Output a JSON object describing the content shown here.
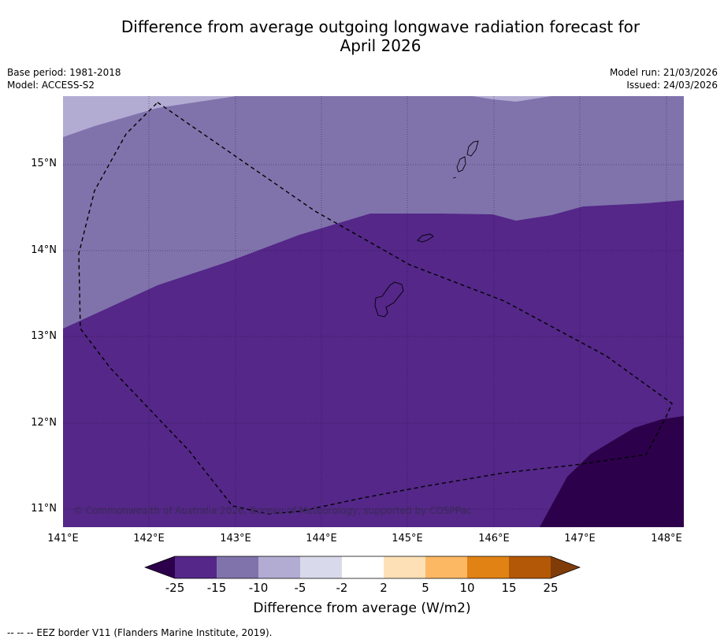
{
  "title": {
    "line1": "Difference from average outgoing longwave radiation forecast for",
    "line2": "April 2026"
  },
  "meta": {
    "base_period": "Base period: 1981-2018",
    "model": "Model: ACCESS-S2",
    "model_run": "Model run: 21/03/2026",
    "issued": "Issued: 24/03/2026"
  },
  "map": {
    "lat_labels": [
      "15°N",
      "14°N",
      "13°N",
      "12°N",
      "11°N"
    ],
    "lon_labels": [
      "141°E",
      "142°E",
      "143°E",
      "144°E",
      "145°E",
      "146°E",
      "147°E",
      "148°E"
    ],
    "copyright": "© Commonwealth of Australia 2026, Bureau of Meteorology, supported by COSPPac",
    "colors": {
      "under": "#2d004b",
      "m25_m15": "#542788",
      "m15_m10": "#8073ac",
      "m10_m5": "#b2abd2",
      "m5_m2": "#d8daeb",
      "m2_2": "#ffffff",
      "p2_5": "#fee0b6",
      "p5_10": "#fdb863",
      "p10_15": "#e08214",
      "p15_25": "#b35806",
      "over": "#7f3b08"
    }
  },
  "colorbar": {
    "ticks": [
      "-25",
      "-15",
      "-10",
      "-5",
      "-2",
      "2",
      "5",
      "10",
      "15",
      "25"
    ],
    "label": "Difference from average (W/m2)"
  },
  "footnote": "-- -- -- EEZ border V11 (Flanders Marine Institute, 2019)."
}
